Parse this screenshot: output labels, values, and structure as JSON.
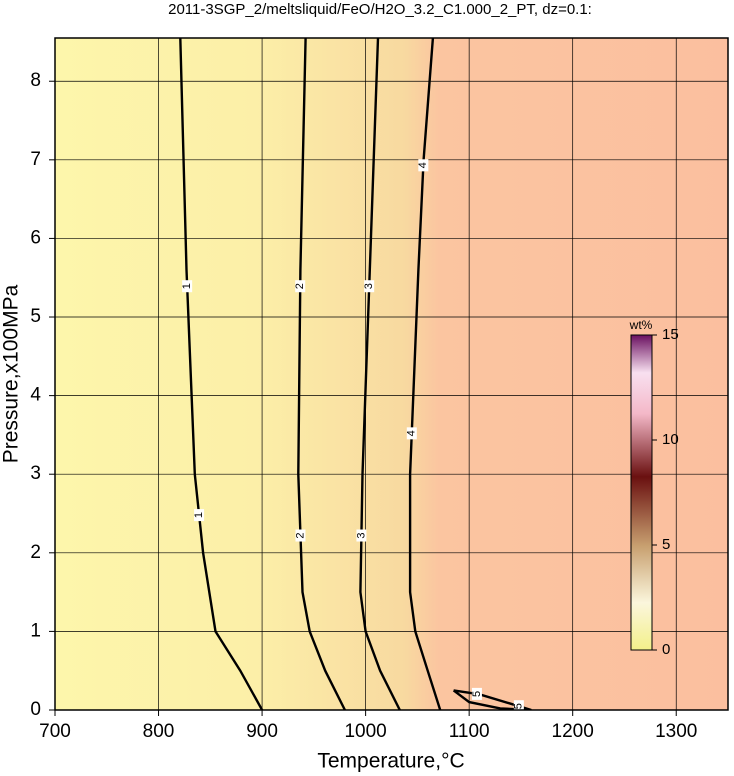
{
  "chart_data": {
    "type": "contour",
    "title": "2011-3SGP_2/meltsliquid/FeO/H2O_3.2_C1.000_2_PT, dz=0.1:",
    "x_label": "Temperature,°C",
    "y_label": "Pressure,x100MPa",
    "xlim": [
      700,
      1350
    ],
    "xticks": [
      700,
      800,
      900,
      1000,
      1100,
      1200,
      1300
    ],
    "ylim": [
      0,
      8.55
    ],
    "yticks": [
      0,
      1,
      2,
      3,
      4,
      5,
      6,
      7,
      8
    ],
    "grid": true,
    "contours": [
      {
        "level": 1,
        "x": [
          821,
          827,
          835,
          843,
          855,
          879,
          900
        ],
        "y": [
          8.55,
          5.6,
          3,
          2,
          1,
          0.5,
          0
        ]
      },
      {
        "level": 2,
        "x": [
          942,
          937,
          935,
          939,
          946,
          961,
          980
        ],
        "y": [
          8.55,
          5.6,
          3,
          1.5,
          1,
          0.5,
          0
        ]
      },
      {
        "level": 3,
        "x": [
          1012,
          1004,
          997,
          995,
          1000,
          1014,
          1033
        ],
        "y": [
          8.55,
          5.6,
          3,
          1.5,
          1,
          0.5,
          0
        ]
      },
      {
        "level": 4,
        "x": [
          1065,
          1056,
          1051,
          1043,
          1043,
          1048,
          1060,
          1072
        ],
        "y": [
          8.55,
          7,
          5.6,
          3,
          1.5,
          1,
          0.5,
          0
        ]
      },
      {
        "level": 5,
        "x": [
          1085,
          1110,
          1140,
          1160,
          1130,
          1100,
          1085
        ],
        "y": [
          0.25,
          0.2,
          0.08,
          0.0,
          0.02,
          0.1,
          0.25
        ]
      }
    ],
    "colorbar": {
      "label": "wt%",
      "lim": [
        0,
        15
      ],
      "ticks": [
        0,
        5,
        10,
        15
      ]
    }
  }
}
